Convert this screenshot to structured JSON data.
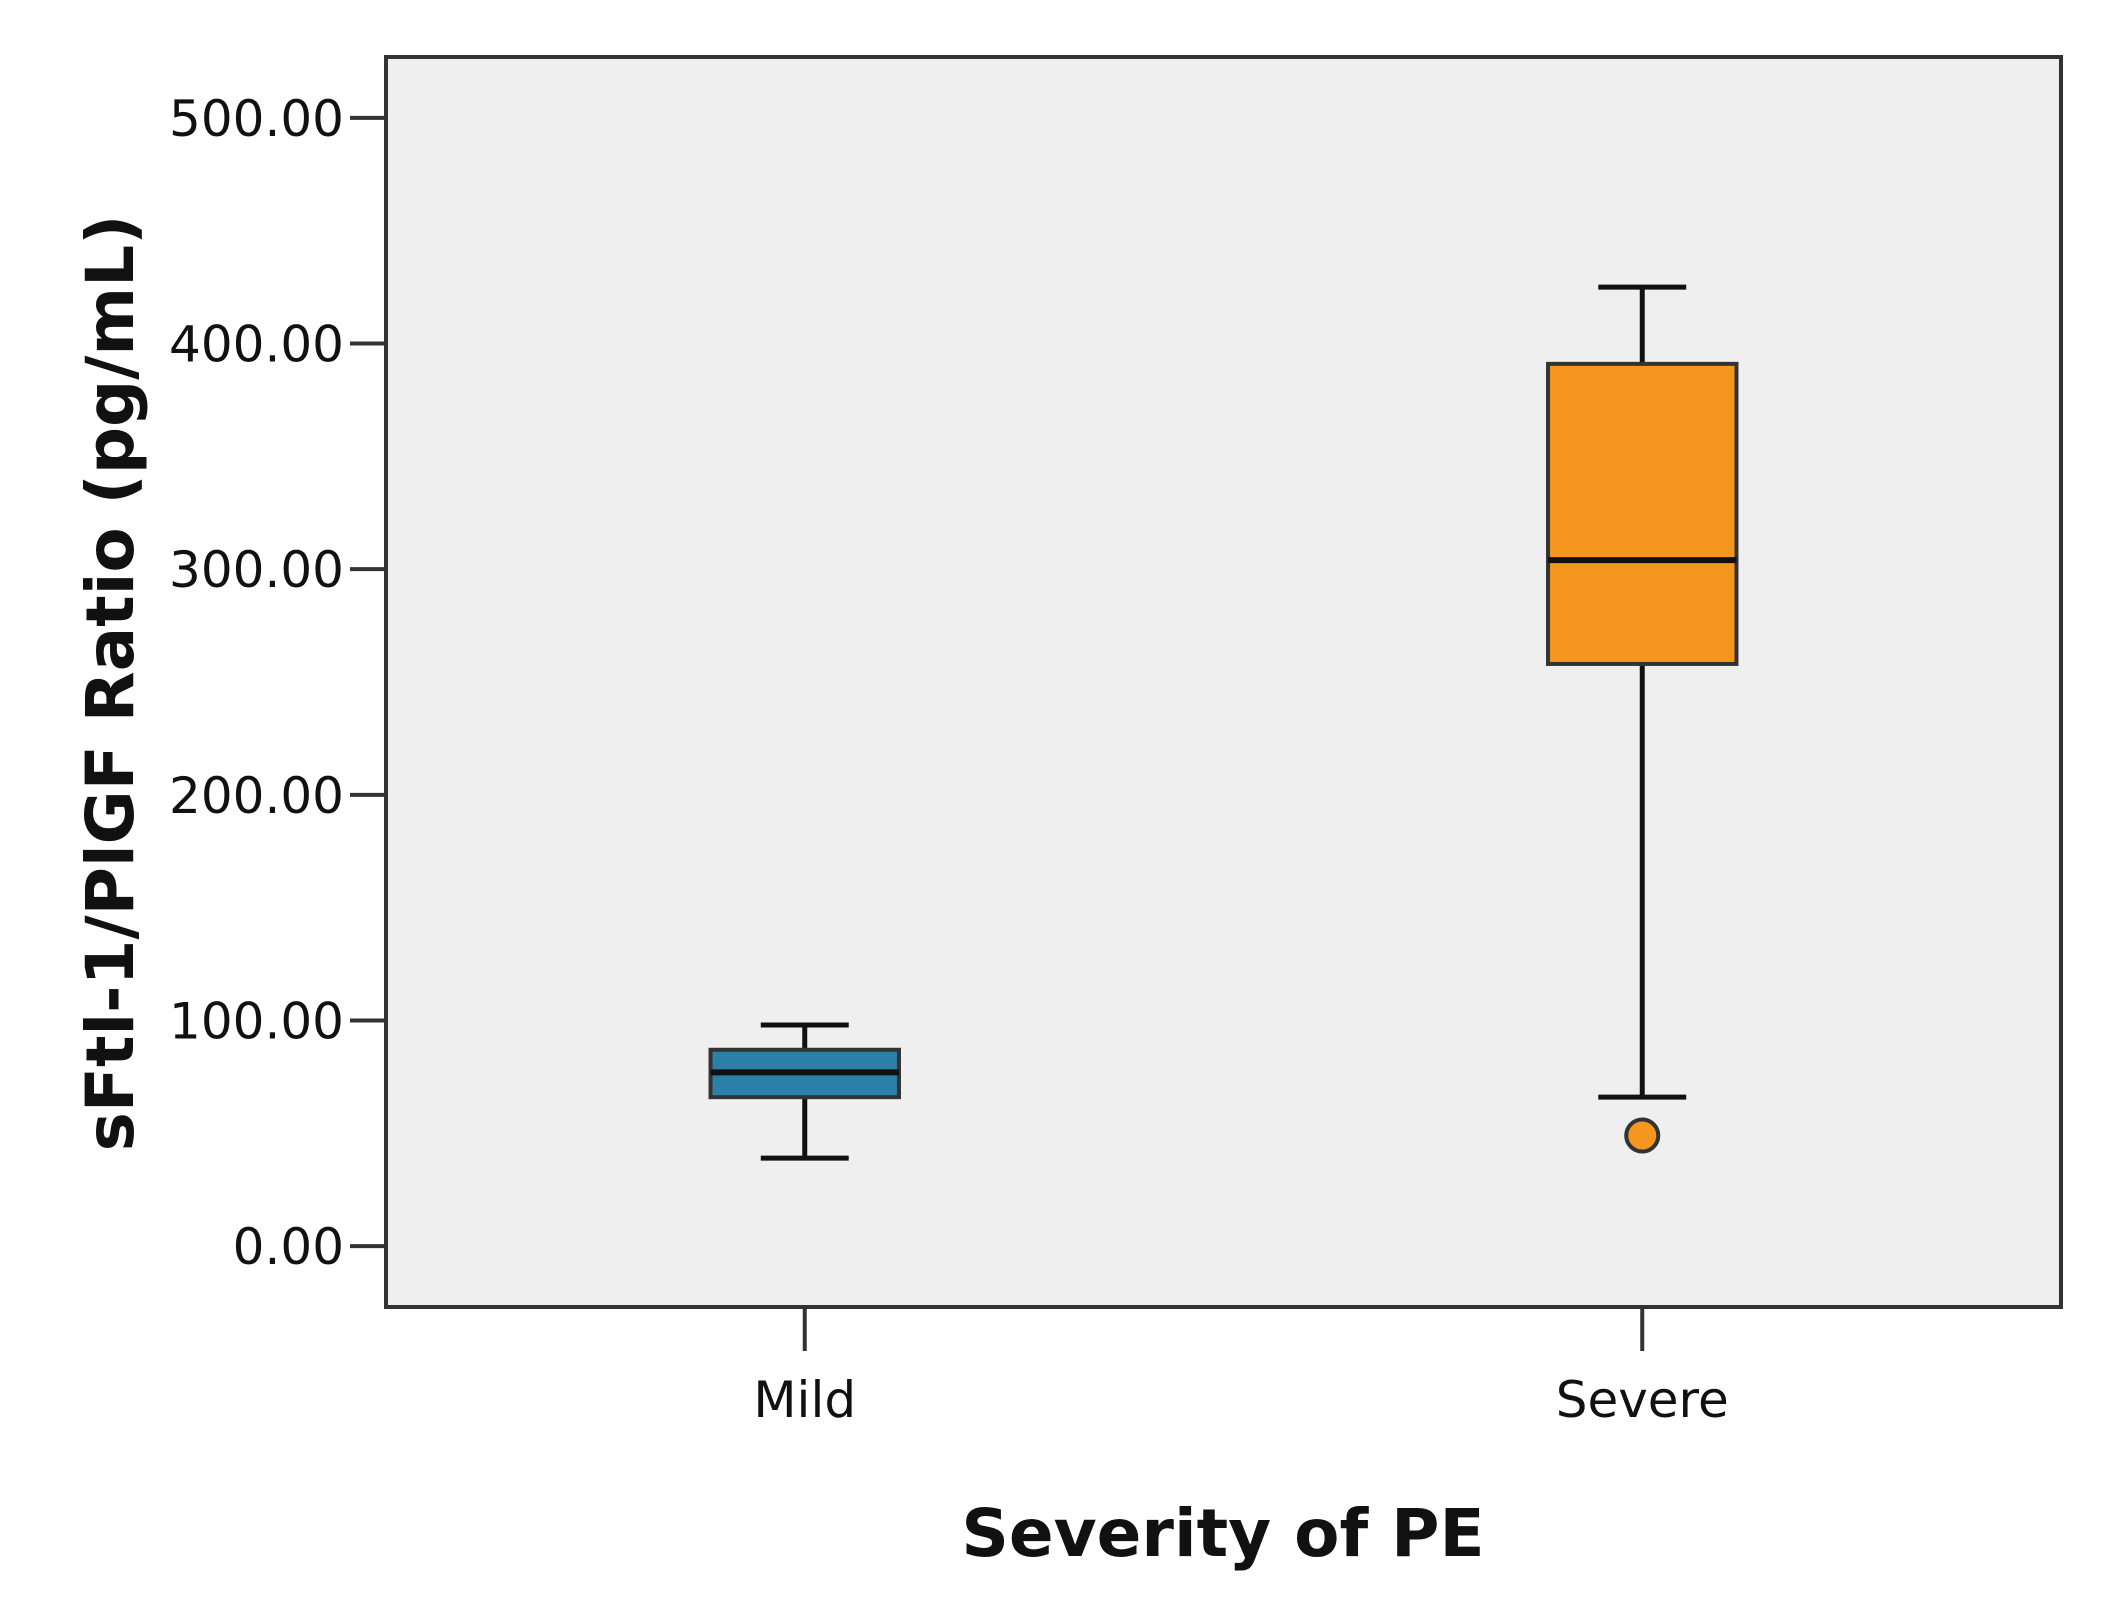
{
  "chart_data": {
    "type": "boxplot",
    "title": "",
    "xlabel": "Severity of PE",
    "ylabel": "sFtl-1/PlGF Ratio (pg/mL)",
    "ylim": [
      -27,
      527
    ],
    "yticks": [
      0,
      100,
      200,
      300,
      400,
      500
    ],
    "ytick_labels": [
      "0.00",
      "100.00",
      "200.00",
      "300.00",
      "400.00",
      "500.00"
    ],
    "categories": [
      "Mild",
      "Severe"
    ],
    "series": [
      {
        "name": "Mild",
        "color": "#2b7fa8",
        "whisker_low": 39,
        "q1": 66,
        "median": 77,
        "q3": 87,
        "whisker_high": 98,
        "outliers": []
      },
      {
        "name": "Severe",
        "color": "#f5961e",
        "whisker_low": 66,
        "q1": 258,
        "median": 304,
        "q3": 391,
        "whisker_high": 425,
        "outliers": [
          49
        ]
      }
    ],
    "plot_background": "#efefef",
    "grid": false
  }
}
